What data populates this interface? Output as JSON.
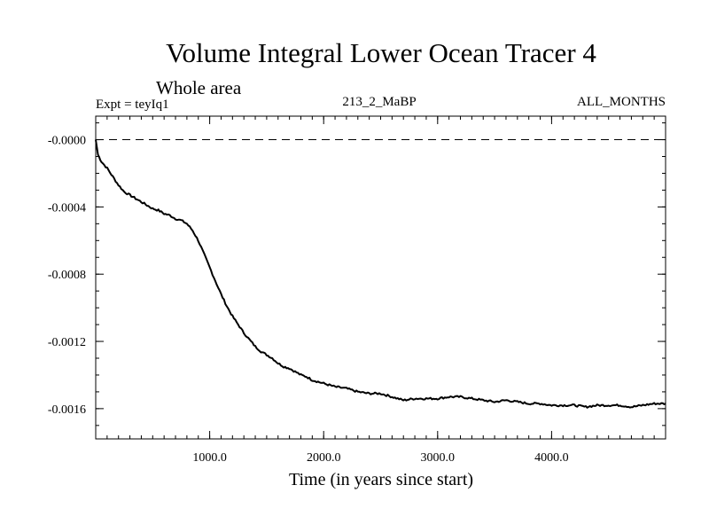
{
  "chart_data": {
    "type": "line",
    "title": "Volume Integral Lower Ocean Tracer 4",
    "subtitle": "Whole area",
    "experiment_label": "Expt = teyIq1",
    "center_label": "213_2_MaBP",
    "right_label": "ALL_MONTHS",
    "xlabel": "Time (in years since start)",
    "ylabel": "",
    "xlim": [
      0,
      5000
    ],
    "ylim": [
      -0.00178,
      0.00014
    ],
    "x_ticks": [
      {
        "value": 1000,
        "label": "1000.0"
      },
      {
        "value": 2000,
        "label": "2000.0"
      },
      {
        "value": 3000,
        "label": "3000.0"
      },
      {
        "value": 4000,
        "label": "4000.0"
      }
    ],
    "y_ticks": [
      {
        "value": 0.0,
        "label": "-0.0000"
      },
      {
        "value": -0.0004,
        "label": "-0.0004"
      },
      {
        "value": -0.0008,
        "label": "-0.0008"
      },
      {
        "value": -0.0012,
        "label": "-0.0012"
      },
      {
        "value": -0.0016,
        "label": "-0.0016"
      }
    ],
    "reference_line": {
      "value": 0.0,
      "style": "dashed"
    },
    "series": [
      {
        "name": "Volume integral",
        "x": [
          0,
          20,
          50,
          100,
          150,
          200,
          250,
          300,
          350,
          400,
          450,
          500,
          550,
          600,
          650,
          700,
          750,
          800,
          850,
          900,
          950,
          1000,
          1050,
          1100,
          1150,
          1200,
          1250,
          1300,
          1350,
          1400,
          1450,
          1500,
          1550,
          1600,
          1650,
          1700,
          1750,
          1800,
          1850,
          1900,
          1950,
          2000,
          2100,
          2200,
          2300,
          2400,
          2500,
          2600,
          2700,
          2800,
          2900,
          3000,
          3100,
          3200,
          3300,
          3400,
          3500,
          3600,
          3700,
          3800,
          3900,
          4000,
          4100,
          4200,
          4300,
          4400,
          4500,
          4600,
          4700,
          4800,
          4900,
          5000
        ],
        "y": [
          0.0,
          -9e-05,
          -0.00013,
          -0.00017,
          -0.00022,
          -0.00027,
          -0.00031,
          -0.00033,
          -0.00035,
          -0.00037,
          -0.00039,
          -0.00041,
          -0.00042,
          -0.00044,
          -0.00045,
          -0.00047,
          -0.00048,
          -0.0005,
          -0.00054,
          -0.0006,
          -0.00068,
          -0.00076,
          -0.00084,
          -0.00092,
          -0.00099,
          -0.00105,
          -0.0011,
          -0.00115,
          -0.00119,
          -0.00123,
          -0.00126,
          -0.00128,
          -0.0013,
          -0.00133,
          -0.00135,
          -0.00136,
          -0.00138,
          -0.0014,
          -0.00141,
          -0.00143,
          -0.00144,
          -0.00145,
          -0.00147,
          -0.00148,
          -0.0015,
          -0.00151,
          -0.00151,
          -0.00153,
          -0.00155,
          -0.00154,
          -0.00154,
          -0.00154,
          -0.00153,
          -0.00153,
          -0.00154,
          -0.00155,
          -0.00156,
          -0.00155,
          -0.00156,
          -0.00157,
          -0.00157,
          -0.00158,
          -0.00158,
          -0.00158,
          -0.00159,
          -0.00158,
          -0.00158,
          -0.00158,
          -0.00159,
          -0.00158,
          -0.00157,
          -0.00157
        ]
      }
    ]
  }
}
